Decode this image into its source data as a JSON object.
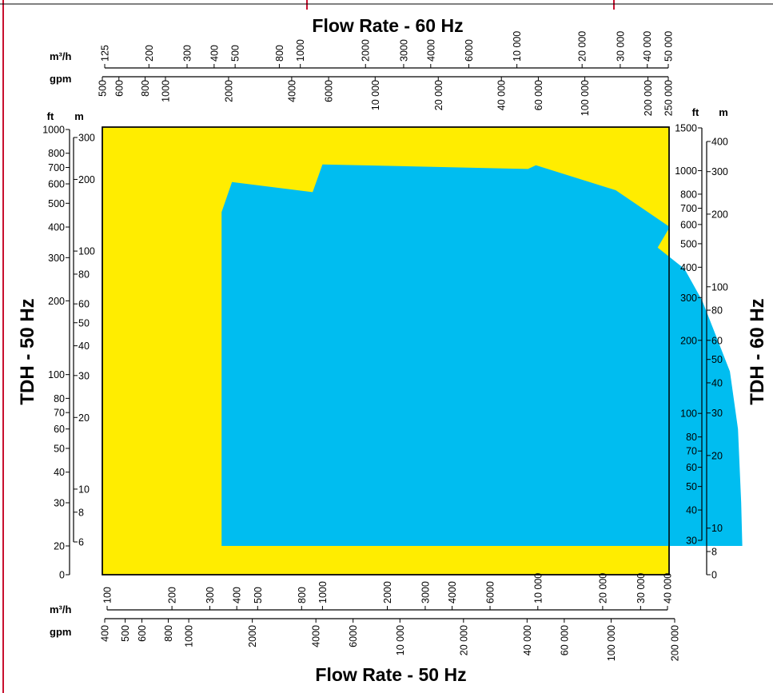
{
  "chart_data": {
    "type": "area",
    "colors": {
      "background": "#ffed00",
      "area": "#00bdf0",
      "frame": "#c8102e"
    },
    "titles": {
      "top": "Flow Rate - 60 Hz",
      "bottom": "Flow Rate - 50 Hz",
      "left": "TDH - 50 Hz",
      "right": "TDH - 60 Hz"
    },
    "unit_labels": {
      "top_m3h": "m³/h",
      "top_gpm": "gpm",
      "bottom_m3h": "m³/h",
      "bottom_gpm": "gpm",
      "left_ft": "ft",
      "left_m": "m",
      "right_ft": "ft",
      "right_m": "m"
    },
    "flow_axis_50hz_m3h": {
      "scale": "log",
      "range": [
        70,
        40000
      ]
    },
    "head_axis_50hz_ft": {
      "scale": "log",
      "range": [
        14,
        1000
      ]
    },
    "axes": {
      "top_m3h": [
        {
          "v": 125,
          "t": "125"
        },
        {
          "v": 200,
          "t": "200"
        },
        {
          "v": 300,
          "t": "300"
        },
        {
          "v": 400,
          "t": "400"
        },
        {
          "v": 500,
          "t": "500"
        },
        {
          "v": 800,
          "t": "800"
        },
        {
          "v": 1000,
          "t": "1000"
        },
        {
          "v": 2000,
          "t": "2000"
        },
        {
          "v": 3000,
          "t": "3000"
        },
        {
          "v": 4000,
          "t": "4000"
        },
        {
          "v": 6000,
          "t": "6000"
        },
        {
          "v": 10000,
          "t": "10 000"
        },
        {
          "v": 20000,
          "t": "20 000"
        },
        {
          "v": 30000,
          "t": "30 000"
        },
        {
          "v": 40000,
          "t": "40 000"
        },
        {
          "v": 50000,
          "t": "50 000"
        }
      ],
      "top_gpm": [
        {
          "v": 500,
          "t": "500"
        },
        {
          "v": 600,
          "t": "600"
        },
        {
          "v": 800,
          "t": "800"
        },
        {
          "v": 1000,
          "t": "1000"
        },
        {
          "v": 2000,
          "t": "2000"
        },
        {
          "v": 4000,
          "t": "4000"
        },
        {
          "v": 6000,
          "t": "6000"
        },
        {
          "v": 10000,
          "t": "10 000"
        },
        {
          "v": 20000,
          "t": "20 000"
        },
        {
          "v": 40000,
          "t": "40 000"
        },
        {
          "v": 60000,
          "t": "60 000"
        },
        {
          "v": 100000,
          "t": "100 000"
        },
        {
          "v": 200000,
          "t": "200 000"
        },
        {
          "v": 250000,
          "t": "250 000"
        }
      ],
      "bottom_m3h": [
        {
          "v": 100,
          "t": "100"
        },
        {
          "v": 200,
          "t": "200"
        },
        {
          "v": 300,
          "t": "300"
        },
        {
          "v": 400,
          "t": "400"
        },
        {
          "v": 500,
          "t": "500"
        },
        {
          "v": 800,
          "t": "800"
        },
        {
          "v": 1000,
          "t": "1000"
        },
        {
          "v": 2000,
          "t": "2000"
        },
        {
          "v": 3000,
          "t": "3000"
        },
        {
          "v": 4000,
          "t": "4000"
        },
        {
          "v": 6000,
          "t": "6000"
        },
        {
          "v": 10000,
          "t": "10 000"
        },
        {
          "v": 20000,
          "t": "20 000"
        },
        {
          "v": 30000,
          "t": "30 000"
        },
        {
          "v": 40000,
          "t": "40 000"
        }
      ],
      "bottom_gpm": [
        {
          "v": 400,
          "t": "400"
        },
        {
          "v": 500,
          "t": "500"
        },
        {
          "v": 600,
          "t": "600"
        },
        {
          "v": 800,
          "t": "800"
        },
        {
          "v": 1000,
          "t": "1000"
        },
        {
          "v": 2000,
          "t": "2000"
        },
        {
          "v": 4000,
          "t": "4000"
        },
        {
          "v": 6000,
          "t": "6000"
        },
        {
          "v": 10000,
          "t": "10 000"
        },
        {
          "v": 20000,
          "t": "20 000"
        },
        {
          "v": 40000,
          "t": "40 000"
        },
        {
          "v": 60000,
          "t": "60 000"
        },
        {
          "v": 100000,
          "t": "100 000"
        },
        {
          "v": 200000,
          "t": "200 000"
        }
      ],
      "left_ft": [
        {
          "v": 1000,
          "t": "1000"
        },
        {
          "v": 800,
          "t": "800"
        },
        {
          "v": 700,
          "t": "700"
        },
        {
          "v": 600,
          "t": "600"
        },
        {
          "v": 500,
          "t": "500"
        },
        {
          "v": 400,
          "t": "400"
        },
        {
          "v": 300,
          "t": "300"
        },
        {
          "v": 200,
          "t": "200"
        },
        {
          "v": 100,
          "t": "100"
        },
        {
          "v": 80,
          "t": "80"
        },
        {
          "v": 70,
          "t": "70"
        },
        {
          "v": 60,
          "t": "60"
        },
        {
          "v": 50,
          "t": "50"
        },
        {
          "v": 40,
          "t": "40"
        },
        {
          "v": 30,
          "t": "30"
        },
        {
          "v": 20,
          "t": "20"
        },
        {
          "v": 0,
          "t": "0"
        }
      ],
      "left_m": [
        {
          "v": 300,
          "t": "300"
        },
        {
          "v": 200,
          "t": "200"
        },
        {
          "v": 100,
          "t": "100"
        },
        {
          "v": 80,
          "t": "80"
        },
        {
          "v": 60,
          "t": "60"
        },
        {
          "v": 50,
          "t": "50"
        },
        {
          "v": 40,
          "t": "40"
        },
        {
          "v": 30,
          "t": "30"
        },
        {
          "v": 20,
          "t": "20"
        },
        {
          "v": 10,
          "t": "10"
        },
        {
          "v": 8,
          "t": "8"
        },
        {
          "v": 6,
          "t": "6"
        }
      ],
      "right_ft": [
        {
          "v": 1500,
          "t": "1500"
        },
        {
          "v": 1000,
          "t": "1000"
        },
        {
          "v": 800,
          "t": "800"
        },
        {
          "v": 700,
          "t": "700"
        },
        {
          "v": 600,
          "t": "600"
        },
        {
          "v": 500,
          "t": "500"
        },
        {
          "v": 400,
          "t": "400"
        },
        {
          "v": 300,
          "t": "300"
        },
        {
          "v": 200,
          "t": "200"
        },
        {
          "v": 100,
          "t": "100"
        },
        {
          "v": 80,
          "t": "80"
        },
        {
          "v": 70,
          "t": "70"
        },
        {
          "v": 60,
          "t": "60"
        },
        {
          "v": 50,
          "t": "50"
        },
        {
          "v": 40,
          "t": "40"
        },
        {
          "v": 30,
          "t": "30"
        }
      ],
      "right_m": [
        {
          "v": 400,
          "t": "400"
        },
        {
          "v": 300,
          "t": "300"
        },
        {
          "v": 200,
          "t": "200"
        },
        {
          "v": 100,
          "t": "100"
        },
        {
          "v": 80,
          "t": "80"
        },
        {
          "v": 60,
          "t": "60"
        },
        {
          "v": 50,
          "t": "50"
        },
        {
          "v": 40,
          "t": "40"
        },
        {
          "v": 30,
          "t": "30"
        },
        {
          "v": 20,
          "t": "20"
        },
        {
          "v": 10,
          "t": "10"
        },
        {
          "v": 8,
          "t": "8"
        },
        {
          "v": 0,
          "t": "0"
        }
      ]
    },
    "performance_envelope_50hz": {
      "flow_unit": "m³/h",
      "head_unit": "ft",
      "points": [
        [
          340,
          20
        ],
        [
          340,
          460
        ],
        [
          380,
          610
        ],
        [
          900,
          555
        ],
        [
          1000,
          720
        ],
        [
          9000,
          690
        ],
        [
          9800,
          715
        ],
        [
          23000,
          565
        ],
        [
          41000,
          400
        ],
        [
          36000,
          330
        ],
        [
          48000,
          270
        ],
        [
          58000,
          200
        ],
        [
          68000,
          140
        ],
        [
          78000,
          103
        ],
        [
          85000,
          60
        ],
        [
          88000,
          30
        ],
        [
          89000,
          20
        ]
      ]
    }
  }
}
